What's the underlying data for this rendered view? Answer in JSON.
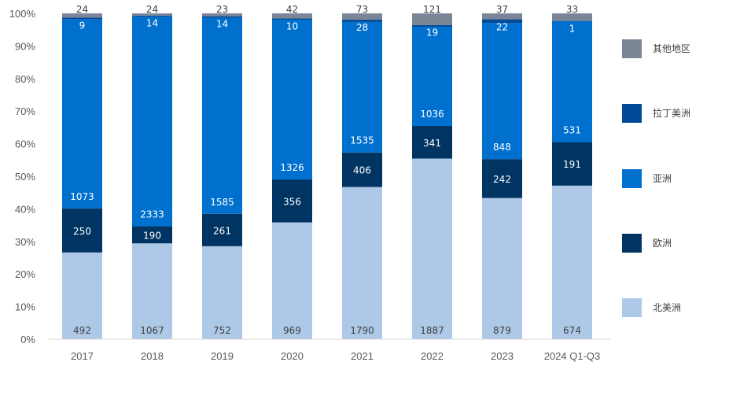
{
  "chart_data": {
    "type": "bar",
    "stacked": true,
    "normalized": true,
    "title": "",
    "xlabel": "",
    "ylabel": "",
    "ylim": [
      0,
      100
    ],
    "yticks": [
      "0%",
      "10%",
      "20%",
      "30%",
      "40%",
      "50%",
      "60%",
      "70%",
      "80%",
      "90%",
      "100%"
    ],
    "grid": false,
    "legend_position": "right",
    "categories": [
      "2017",
      "2018",
      "2019",
      "2020",
      "2021",
      "2022",
      "2023",
      "2024 Q1-Q3"
    ],
    "series": [
      {
        "name": "北美洲",
        "color": "#aec8e8",
        "label_color": "#404040",
        "values": [
          492,
          1067,
          752,
          969,
          1790,
          1887,
          879,
          674
        ]
      },
      {
        "name": "欧洲",
        "color": "#003462",
        "label_color": "#ffffff",
        "values": [
          250,
          190,
          261,
          356,
          406,
          341,
          242,
          191
        ]
      },
      {
        "name": "亚洲",
        "color": "#0070cf",
        "label_color": "#ffffff",
        "values": [
          1073,
          2333,
          1585,
          1326,
          1535,
          1036,
          848,
          531
        ]
      },
      {
        "name": "拉丁美洲",
        "color": "#004a98",
        "label_color": "#ffffff",
        "values": [
          9,
          14,
          14,
          10,
          28,
          19,
          22,
          1
        ]
      },
      {
        "name": "其他地区",
        "color": "#7a8595",
        "label_color": "#404040",
        "values": [
          24,
          24,
          23,
          42,
          73,
          121,
          37,
          33
        ]
      }
    ],
    "legend_order": [
      "其他地区",
      "拉丁美洲",
      "亚洲",
      "欧洲",
      "北美洲"
    ]
  }
}
